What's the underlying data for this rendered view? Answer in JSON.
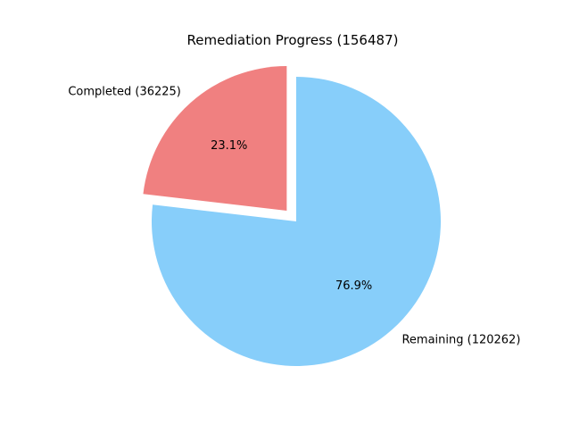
{
  "chart_data": {
    "type": "pie",
    "title": "Remediation Progress (156487)",
    "slices": [
      {
        "label": "Completed (36225)",
        "value": 36225,
        "percent_label": "23.1%",
        "color": "#f08080",
        "exploded": true
      },
      {
        "label": "Remaining (120262)",
        "value": 120262,
        "percent_label": "76.9%",
        "color": "#87cefa",
        "exploded": false
      }
    ]
  }
}
